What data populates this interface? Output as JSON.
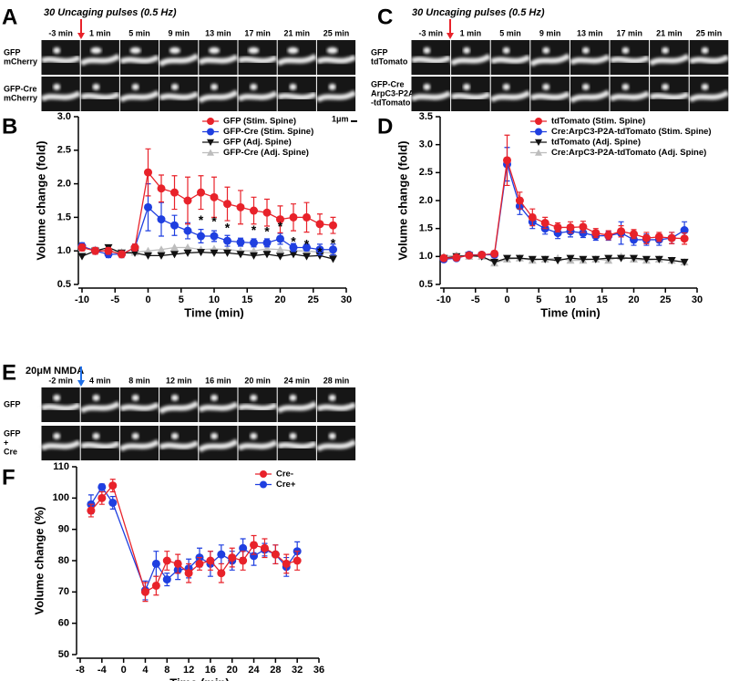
{
  "image_panels": [
    {
      "letter": "A",
      "header": "30 Uncaging pulses (0.5 Hz)",
      "times": [
        "-3 min",
        "1 min",
        "5 min",
        "9 min",
        "13 min",
        "17 min",
        "21 min",
        "25 min"
      ],
      "rows": [
        [
          "GFP",
          "mCherry"
        ],
        [
          "GFP-Cre",
          "mCherry"
        ]
      ],
      "scale_bar": "1μm"
    },
    {
      "letter": "C",
      "header": "30 Uncaging pulses (0.5 Hz)",
      "times": [
        "-3 min",
        "1 min",
        "5 min",
        "9 min",
        "13 min",
        "17 min",
        "21 min",
        "25 min"
      ],
      "rows": [
        [
          "GFP",
          "tdTomato"
        ],
        [
          "GFP-Cre",
          "ArpC3-P2A",
          "-tdTomato"
        ]
      ]
    },
    {
      "letter": "E",
      "header": "20μM NMDA",
      "times": [
        "-2 min",
        "4 min",
        "8 min",
        "12 min",
        "16 min",
        "20 min",
        "24 min",
        "28 min"
      ],
      "rows": [
        [
          "GFP"
        ],
        [
          "GFP",
          "+",
          "Cre"
        ]
      ]
    }
  ],
  "chart_data": [
    {
      "panel": "B",
      "type": "line",
      "x_label": "Time (min)",
      "y_label": "Volume change (fold)",
      "x": [
        -10,
        -8,
        -6,
        -4,
        -2,
        0,
        2,
        4,
        6,
        8,
        10,
        12,
        14,
        16,
        18,
        20,
        22,
        24,
        26,
        28
      ],
      "xlim": [
        -10,
        30
      ],
      "xticks": [
        -10,
        -5,
        0,
        5,
        10,
        15,
        20,
        25,
        30
      ],
      "ylim": [
        0.5,
        3.0
      ],
      "yticks": [
        0.5,
        {
          "value": 1,
          "label": "1.0"
        },
        1.5,
        {
          "value": 2,
          "label": "2.0"
        },
        2.5,
        {
          "value": 3,
          "label": "3.0"
        }
      ],
      "series": [
        {
          "name": "GFP (Stim. Spine)",
          "color": "#e8222a",
          "marker": "circle",
          "values": [
            1.05,
            1.0,
            1.0,
            0.95,
            1.05,
            2.17,
            1.93,
            1.87,
            1.75,
            1.87,
            1.8,
            1.7,
            1.65,
            1.6,
            1.57,
            1.47,
            1.5,
            1.5,
            1.4,
            1.38
          ],
          "errors": [
            0.05,
            0.05,
            0.05,
            0.05,
            0.05,
            0.35,
            0.2,
            0.25,
            0.35,
            0.25,
            0.3,
            0.25,
            0.25,
            0.2,
            0.2,
            0.2,
            0.2,
            0.22,
            0.15,
            0.12
          ]
        },
        {
          "name": "GFP-Cre (Stim. Spine)",
          "color": "#1f3fe0",
          "marker": "circle",
          "values": [
            1.07,
            1.0,
            0.95,
            0.95,
            1.05,
            1.65,
            1.47,
            1.38,
            1.3,
            1.22,
            1.22,
            1.15,
            1.13,
            1.12,
            1.12,
            1.18,
            1.05,
            1.05,
            1.02,
            1.02
          ],
          "errors": [
            0.05,
            0.05,
            0.05,
            0.05,
            0.05,
            0.35,
            0.25,
            0.15,
            0.12,
            0.1,
            0.08,
            0.08,
            0.06,
            0.06,
            0.06,
            0.08,
            0.06,
            0.05,
            0.08,
            0.08
          ]
        },
        {
          "name": "GFP (Adj. Spine)",
          "color": "#111111",
          "marker": "triangle-down",
          "values": [
            0.92,
            1.0,
            1.05,
            0.97,
            0.97,
            0.93,
            0.93,
            0.95,
            0.97,
            0.98,
            0.97,
            0.97,
            0.95,
            0.93,
            0.95,
            0.92,
            0.95,
            0.92,
            0.93,
            0.88
          ]
        },
        {
          "name": "GFP-Cre (Adj. Spine)",
          "color": "#bdbdbd",
          "marker": "triangle-up",
          "values": [
            1.05,
            1.02,
            1.0,
            0.98,
            0.98,
            1.0,
            1.02,
            1.05,
            1.05,
            1.02,
            1.03,
            1.02,
            1.0,
            1.0,
            1.03,
            1.02,
            1.0,
            1.0,
            0.98,
            0.97
          ]
        }
      ],
      "annotations": [
        {
          "x": 8,
          "y": 1.45,
          "text": "*"
        },
        {
          "x": 10,
          "y": 1.43,
          "text": "*"
        },
        {
          "x": 12,
          "y": 1.33,
          "text": "*"
        },
        {
          "x": 16,
          "y": 1.3,
          "text": "*"
        },
        {
          "x": 18,
          "y": 1.28,
          "text": "*"
        },
        {
          "x": 20,
          "y": 1.35,
          "text": "*"
        },
        {
          "x": 22,
          "y": 1.13,
          "text": "*"
        },
        {
          "x": 24,
          "y": 1.09,
          "text": "*"
        },
        {
          "x": 26,
          "y": 0.97,
          "text": "*"
        },
        {
          "x": 28,
          "y": 1.1,
          "text": "*"
        }
      ]
    },
    {
      "panel": "D",
      "type": "line",
      "x_label": "Time (min)",
      "y_label": "Volume change (fold)",
      "x": [
        -10,
        -8,
        -6,
        -4,
        -2,
        0,
        2,
        4,
        6,
        8,
        10,
        12,
        14,
        16,
        18,
        20,
        22,
        24,
        26,
        28
      ],
      "xlim": [
        -10,
        30
      ],
      "xticks": [
        -10,
        -5,
        0,
        5,
        10,
        15,
        20,
        25,
        30
      ],
      "ylim": [
        0.5,
        3.5
      ],
      "yticks": [
        0.5,
        {
          "value": 1,
          "label": "1.0"
        },
        1.5,
        {
          "value": 2,
          "label": "2.0"
        },
        2.5,
        {
          "value": 3,
          "label": "3.0"
        },
        3.5
      ],
      "series": [
        {
          "name": "tdTomato (Stim. Spine)",
          "color": "#e8222a",
          "marker": "circle",
          "values": [
            0.97,
            0.98,
            1.02,
            1.03,
            1.05,
            2.72,
            2.0,
            1.7,
            1.6,
            1.52,
            1.52,
            1.53,
            1.42,
            1.38,
            1.45,
            1.4,
            1.33,
            1.35,
            1.33,
            1.32
          ],
          "errors": [
            0.05,
            0.05,
            0.04,
            0.04,
            0.05,
            0.45,
            0.15,
            0.15,
            0.1,
            0.08,
            0.1,
            0.1,
            0.08,
            0.08,
            0.1,
            0.08,
            0.1,
            0.08,
            0.1,
            0.1
          ]
        },
        {
          "name": "Cre:ArpC3-P2A-tdTomato (Stim. Spine)",
          "color": "#1f3fe0",
          "marker": "circle",
          "values": [
            0.95,
            0.97,
            1.03,
            1.03,
            1.03,
            2.65,
            1.9,
            1.62,
            1.5,
            1.42,
            1.45,
            1.42,
            1.37,
            1.37,
            1.42,
            1.3,
            1.3,
            1.3,
            1.33,
            1.47
          ],
          "errors": [
            0.04,
            0.04,
            0.04,
            0.04,
            0.04,
            0.3,
            0.15,
            0.12,
            0.1,
            0.1,
            0.1,
            0.08,
            0.08,
            0.08,
            0.2,
            0.1,
            0.1,
            0.1,
            0.1,
            0.15
          ]
        },
        {
          "name": "tdTomato (Adj. Spine)",
          "color": "#111111",
          "marker": "triangle-down",
          "values": [
            0.97,
            1.0,
            1.02,
            1.0,
            0.9,
            0.97,
            0.97,
            0.95,
            0.95,
            0.93,
            0.97,
            0.95,
            0.95,
            0.97,
            0.97,
            0.97,
            0.95,
            0.95,
            0.93,
            0.9
          ]
        },
        {
          "name": "Cre:ArpC3-P2A-tdTomato (Adj. Spine)",
          "color": "#bdbdbd",
          "marker": "triangle-up",
          "values": [
            1.0,
            1.02,
            1.0,
            1.0,
            0.88,
            0.95,
            0.97,
            0.93,
            0.95,
            0.97,
            0.93,
            0.93,
            0.95,
            0.93,
            1.0,
            0.95,
            0.93,
            0.95,
            0.93,
            0.9
          ]
        }
      ]
    },
    {
      "panel": "F",
      "type": "line",
      "x_label": "Time (min)",
      "y_label": "Volume change (%)",
      "x": [
        -6,
        -4,
        -2,
        4,
        6,
        8,
        10,
        12,
        14,
        16,
        18,
        20,
        22,
        24,
        26,
        28,
        30,
        32
      ],
      "xlim": [
        -8,
        36
      ],
      "xticks": [
        -8,
        -4,
        0,
        4,
        8,
        12,
        16,
        20,
        24,
        28,
        32,
        36
      ],
      "ylim": [
        50,
        110
      ],
      "yticks": [
        50,
        60,
        70,
        80,
        90,
        100,
        110
      ],
      "series": [
        {
          "name": "Cre-",
          "color": "#e8222a",
          "marker": "circle",
          "values": [
            96,
            100,
            104,
            70,
            72,
            80,
            79,
            76,
            79,
            80,
            76,
            81,
            80,
            85,
            84,
            82,
            79,
            80
          ],
          "errors": [
            2,
            2,
            2,
            3,
            3,
            3,
            3,
            3,
            2,
            3,
            3,
            3,
            3,
            3,
            3,
            3,
            3,
            3
          ]
        },
        {
          "name": "Cre+",
          "color": "#1f3fe0",
          "marker": "circle",
          "values": [
            98,
            103.5,
            98.5,
            70.5,
            79,
            74,
            77,
            77.5,
            81,
            79,
            82,
            80,
            84,
            81.5,
            83.5,
            82,
            78,
            83
          ],
          "errors": [
            3,
            1,
            2,
            3,
            4,
            2,
            3,
            3,
            3,
            4,
            3,
            3,
            3,
            3,
            2,
            3,
            3,
            3
          ]
        }
      ]
    }
  ]
}
